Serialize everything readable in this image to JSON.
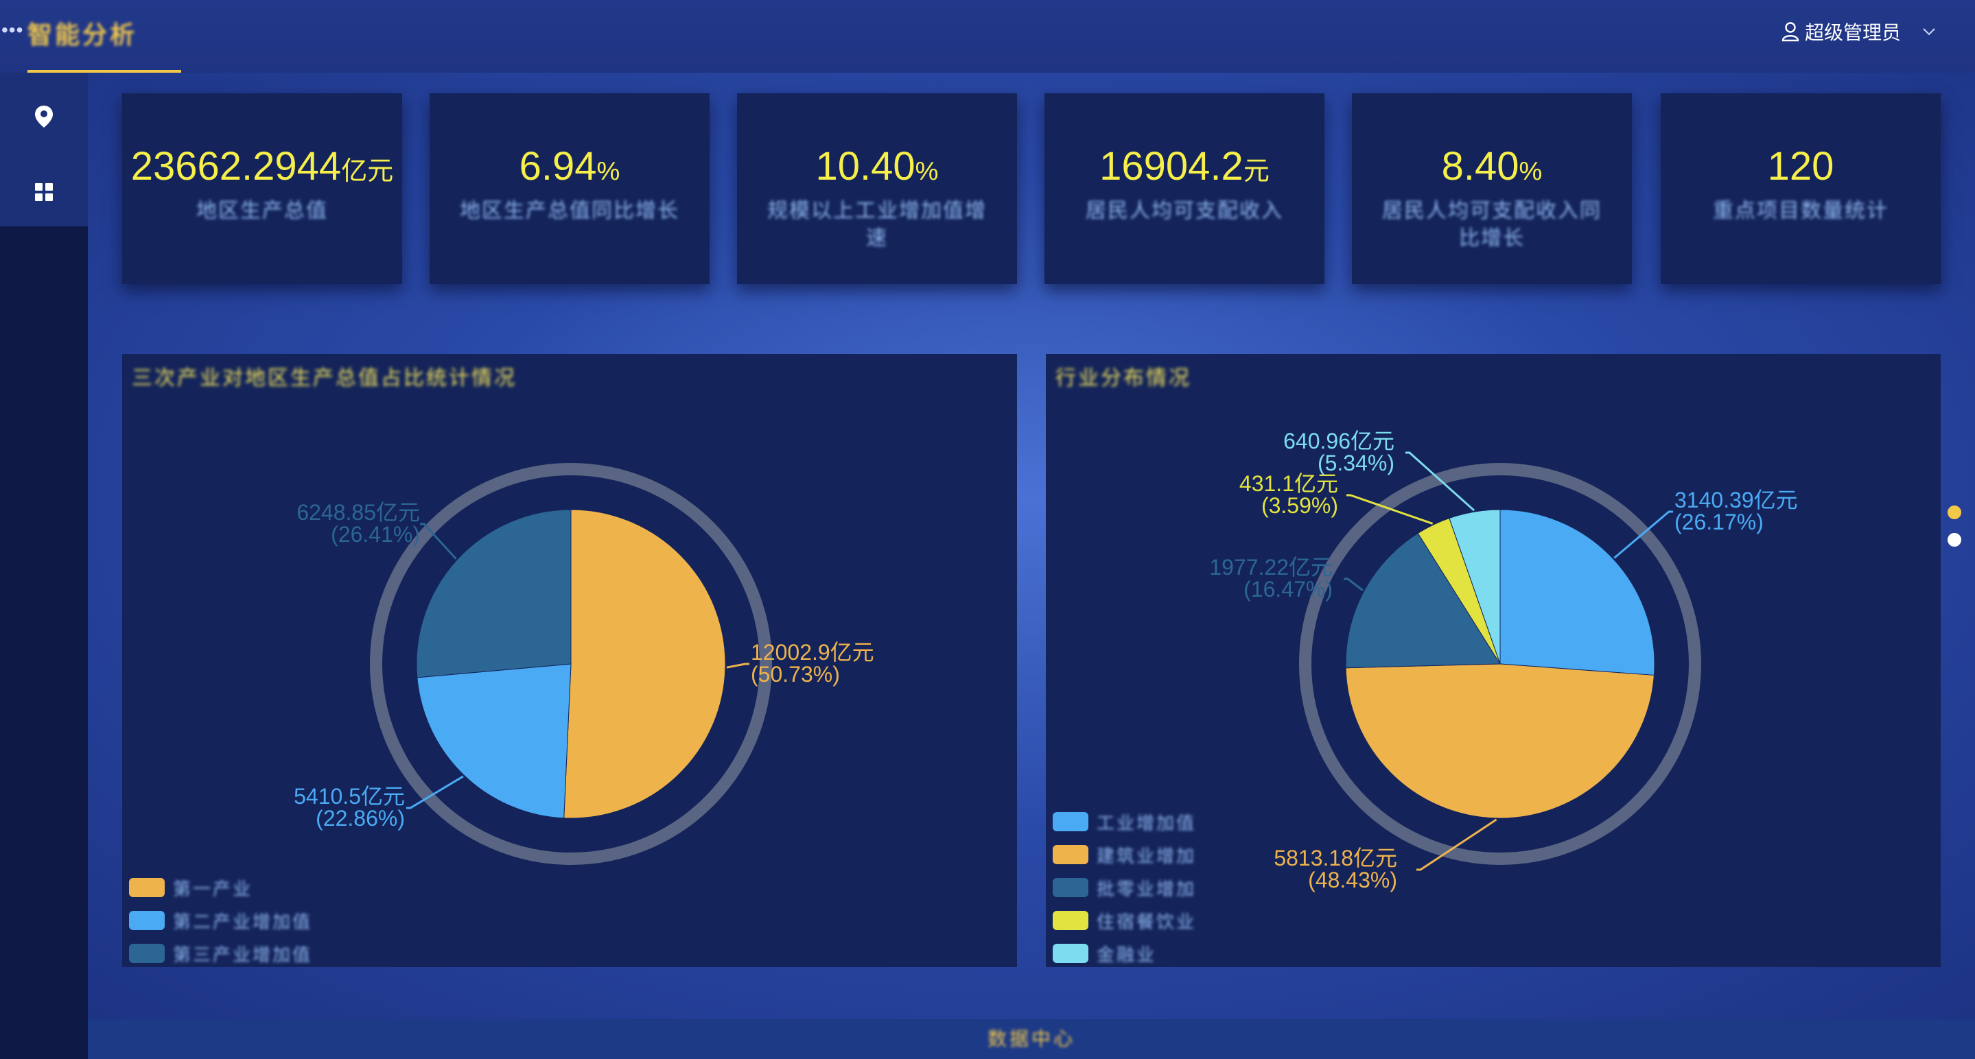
{
  "header": {
    "menu_glyph": "•••",
    "app_title": "智能分析",
    "user_name": "超级管理员"
  },
  "kpis": [
    {
      "value": "23662.2944",
      "unit": "亿元",
      "label": "地区生产总值"
    },
    {
      "value": "6.94",
      "unit": "%",
      "label": "地区生产总值同比增长"
    },
    {
      "value": "10.40",
      "unit": "%",
      "label": "规模以上工业增加值增速"
    },
    {
      "value": "16904.2",
      "unit": "元",
      "label": "居民人均可支配收入"
    },
    {
      "value": "8.40",
      "unit": "%",
      "label": "居民人均可支配收入同比增长"
    },
    {
      "value": "120",
      "unit": "",
      "label": "重点项目数量统计"
    }
  ],
  "panels": {
    "left_title": "三次产业对地区生产总值占比统计情况",
    "right_title": "行业分布情况",
    "footer_text": "数据中心"
  },
  "colors": {
    "orange": "#efb34c",
    "blue": "#4aaaf3",
    "steel": "#2c6694",
    "yellow": "#e2e340",
    "cyan": "#7ddcef",
    "kpi_value": "#f7ef4a"
  },
  "chart_data": [
    {
      "type": "pie",
      "title": "",
      "legend": [
        "第一产业",
        "第二产业增加值",
        "第三产业增加值"
      ],
      "legend_position": "bottom-left",
      "slices": [
        {
          "value": 12002.9,
          "label": "12002.9亿元",
          "percent_label": "(50.73%)",
          "color": "#efb34c"
        },
        {
          "value": 5410.5,
          "label": "5410.5亿元",
          "percent_label": "(22.86%)",
          "color": "#4aaaf3"
        },
        {
          "value": 6248.85,
          "label": "6248.85亿元",
          "percent_label": "(26.41%)",
          "color": "#2c6694"
        }
      ]
    },
    {
      "type": "pie",
      "title": "",
      "legend": [
        "工业增加值",
        "建筑业增加",
        "批零业增加",
        "住宿餐饮业",
        "金融业"
      ],
      "legend_position": "bottom-left",
      "slices": [
        {
          "value": 3140.39,
          "label": "3140.39亿元",
          "percent_label": "(26.17%)",
          "color": "#4aaaf3"
        },
        {
          "value": 5813.18,
          "label": "5813.18亿元",
          "percent_label": "(48.43%)",
          "color": "#efb34c"
        },
        {
          "value": 1977.22,
          "label": "1977.22亿元",
          "percent_label": "(16.47%)",
          "color": "#2c6694"
        },
        {
          "value": 431.1,
          "label": "431.1亿元",
          "percent_label": "(3.59%)",
          "color": "#e2e340"
        },
        {
          "value": 640.96,
          "label": "640.96亿元",
          "percent_label": "(5.34%)",
          "color": "#7ddcef"
        }
      ]
    }
  ]
}
